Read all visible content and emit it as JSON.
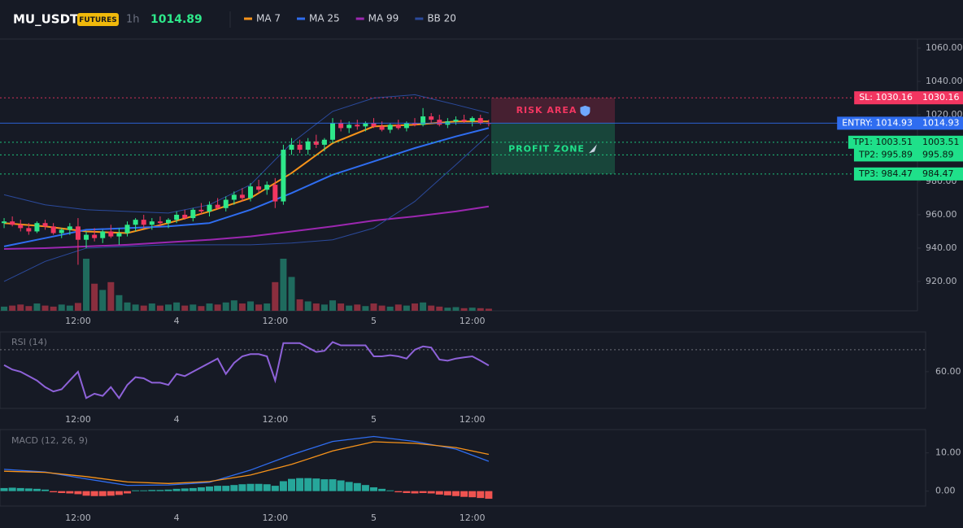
{
  "header": {
    "symbol": "MU_USDT",
    "badge": "FUTURES",
    "interval": "1h",
    "price": 1014.89
  },
  "chart_data": [
    {
      "type": "candlestick",
      "xlim": [
        -0.5,
        111.2
      ],
      "xticks": [
        {
          "value": 9,
          "label": "12:00"
        },
        {
          "value": 21,
          "label": "4"
        },
        {
          "value": 33,
          "label": "12:00"
        },
        {
          "value": 45,
          "label": "5"
        },
        {
          "value": 57,
          "label": "12:00"
        }
      ],
      "ylim": [
        902.4,
        1065.4
      ],
      "yticks": [
        {
          "value": 920,
          "label": "920.00"
        },
        {
          "value": 940,
          "label": "940.00"
        },
        {
          "value": 960,
          "label": "960.00"
        },
        {
          "value": 980,
          "label": "980.00"
        },
        {
          "value": 1000,
          "label": "1000.00"
        },
        {
          "value": 1020,
          "label": "1020.00"
        },
        {
          "value": 1040,
          "label": "1040.00"
        },
        {
          "value": 1060,
          "label": "1060.00"
        }
      ],
      "up_color": "#2ee88a",
      "down_color": "#f23661",
      "volume_up_color": "#1f6b5e",
      "volume_down_color": "#8a2e3e",
      "open": [
        955,
        956,
        954,
        952,
        950,
        955,
        953,
        949,
        951,
        953,
        945,
        948,
        946,
        950,
        947,
        949,
        954,
        957,
        954,
        956,
        955,
        957,
        960,
        958,
        963,
        962,
        966,
        964,
        969,
        972,
        970,
        977,
        975,
        978,
        968,
        999,
        1002,
        999,
        1004,
        1002,
        1005,
        1015,
        1012,
        1014,
        1013,
        1015,
        1013,
        1011,
        1014,
        1012,
        1015,
        1014,
        1019,
        1017,
        1014,
        1016,
        1017,
        1016,
        1018,
        1015
      ],
      "high": [
        958,
        959,
        957,
        955,
        956,
        957,
        955,
        952,
        955,
        958,
        950,
        952,
        951,
        954,
        952,
        956,
        958,
        960,
        958,
        959,
        958,
        962,
        963,
        964,
        967,
        968,
        970,
        971,
        974,
        976,
        979,
        981,
        980,
        982,
        1002,
        1006,
        1005,
        1006,
        1008,
        1006,
        1018,
        1017,
        1016,
        1017,
        1016,
        1018,
        1016,
        1015,
        1017,
        1016,
        1018,
        1024,
        1021,
        1020,
        1018,
        1019,
        1020,
        1019,
        1020,
        1017
      ],
      "low": [
        952,
        953,
        950,
        948,
        949,
        951,
        948,
        946,
        948,
        930,
        940,
        944,
        943,
        946,
        942,
        947,
        950,
        952,
        951,
        953,
        952,
        955,
        957,
        956,
        960,
        959,
        963,
        962,
        966,
        968,
        968,
        973,
        972,
        964,
        966,
        996,
        997,
        996,
        1000,
        998,
        1003,
        1010,
        1009,
        1011,
        1010,
        1012,
        1010,
        1009,
        1011,
        1010,
        1013,
        1013,
        1015,
        1013,
        1012,
        1014,
        1015,
        1013,
        1014,
        1013
      ],
      "close": [
        956,
        954,
        952,
        950,
        955,
        953,
        949,
        951,
        953,
        945,
        948,
        946,
        950,
        947,
        949,
        954,
        957,
        954,
        956,
        955,
        957,
        960,
        958,
        963,
        962,
        966,
        964,
        969,
        972,
        970,
        977,
        975,
        978,
        968,
        999,
        1002,
        999,
        1004,
        1002,
        1005,
        1015,
        1012,
        1014,
        1013,
        1015,
        1013,
        1011,
        1014,
        1012,
        1015,
        1014,
        1019,
        1017,
        1014,
        1016,
        1017,
        1016,
        1018,
        1015,
        1014.89
      ],
      "volume": [
        8,
        10,
        12,
        9,
        14,
        10,
        8,
        12,
        10,
        15,
        100,
        52,
        40,
        55,
        30,
        16,
        12,
        10,
        14,
        10,
        12,
        16,
        10,
        12,
        9,
        14,
        12,
        16,
        20,
        14,
        18,
        12,
        14,
        55,
        100,
        65,
        22,
        18,
        14,
        12,
        20,
        14,
        10,
        12,
        9,
        14,
        10,
        8,
        12,
        10,
        14,
        16,
        10,
        8,
        6,
        7,
        5,
        6,
        5,
        4
      ],
      "series": [
        {
          "name": "MA 7",
          "color": "#f7931a",
          "width": 2,
          "x": [
            0,
            5,
            10,
            15,
            20,
            25,
            30,
            35,
            40,
            45,
            50,
            55,
            59
          ],
          "values": [
            955,
            953,
            950,
            949,
            955,
            962,
            970,
            985,
            1003,
            1013,
            1014,
            1016,
            1016
          ]
        },
        {
          "name": "MA 25",
          "color": "#2f6df0",
          "width": 2,
          "x": [
            0,
            5,
            10,
            15,
            20,
            25,
            30,
            35,
            40,
            45,
            50,
            55,
            59
          ],
          "values": [
            941,
            946,
            951,
            952,
            953,
            955,
            963,
            973,
            984,
            992,
            1000,
            1007,
            1012
          ]
        },
        {
          "name": "MA 99",
          "color": "#9c27b0",
          "width": 2,
          "x": [
            0,
            5,
            10,
            15,
            20,
            25,
            30,
            35,
            40,
            45,
            50,
            55,
            59
          ],
          "values": [
            939.5,
            940,
            941,
            942,
            943.5,
            945,
            947,
            950,
            953,
            956.5,
            959,
            962,
            965
          ]
        },
        {
          "name": "BB 20",
          "color": "#2b4a9c",
          "width": 1,
          "x": [
            0,
            5,
            10,
            15,
            20,
            25,
            30,
            35,
            40,
            45,
            50,
            55,
            59
          ],
          "upper": [
            972,
            966,
            963,
            962,
            961,
            966,
            978,
            1003,
            1022,
            1030,
            1032,
            1026,
            1021
          ],
          "lower": [
            920,
            932,
            940,
            941,
            942,
            942,
            942,
            943,
            945,
            952,
            968,
            990,
            1008
          ]
        }
      ],
      "levels": [
        {
          "label": "SL: 1030.16",
          "value": 1030.16,
          "color": "#f23661",
          "style": "dotted"
        },
        {
          "label": "ENTRY: 1014.93",
          "value": 1014.93,
          "color": "#2f6df0",
          "style": "solid"
        },
        {
          "label": "TP1: 1003.51",
          "value": 1003.51,
          "color": "#1fe08a",
          "style": "dotted"
        },
        {
          "label": "TP2: 995.89",
          "value": 995.89,
          "color": "#1fe08a",
          "style": "dotted"
        },
        {
          "label": "TP3: 984.47",
          "value": 984.47,
          "color": "#1fe08a",
          "style": "dotted"
        }
      ],
      "zones": [
        "RISK AREA",
        "PROFIT ZONE"
      ]
    },
    {
      "type": "line",
      "title": "RSI (14)",
      "color": "#8e62d9",
      "ylim": [
        43.3,
        78.1
      ],
      "yticks": [
        {
          "value": 60,
          "label": "60.00"
        }
      ],
      "levels": [
        70
      ],
      "values": [
        63,
        61,
        60,
        58,
        56,
        53,
        51,
        52,
        56,
        60,
        48,
        50,
        49,
        53,
        48,
        54,
        57.5,
        57,
        55,
        55,
        54,
        59,
        58,
        60,
        62,
        64,
        66,
        59,
        64,
        67,
        68,
        68,
        67,
        56,
        73,
        73,
        73,
        71,
        69,
        69.5,
        73.5,
        72,
        72,
        72,
        72,
        67,
        67,
        67.5,
        67,
        66,
        70,
        71.5,
        71,
        65.5,
        65,
        66,
        66.5,
        67,
        65,
        62.8
      ]
    },
    {
      "type": "macd",
      "title": "MACD (12, 26, 9)",
      "ylim": [
        -3.9,
        16.1
      ],
      "yticks": [
        {
          "value": 10,
          "label": "10.00"
        },
        {
          "value": 0,
          "label": "0.00"
        }
      ],
      "histogram": {
        "up_color": "#26a69a",
        "down_color": "#ef5350",
        "values": [
          0.8,
          0.9,
          0.8,
          0.7,
          0.6,
          0.4,
          -0.3,
          -0.5,
          -0.6,
          -0.8,
          -1.2,
          -1.3,
          -1.3,
          -1.2,
          -1.0,
          -0.6,
          0.2,
          0.2,
          0.3,
          0.3,
          0.4,
          0.6,
          0.7,
          0.8,
          1.0,
          1.2,
          1.4,
          1.4,
          1.6,
          1.8,
          1.9,
          1.9,
          1.8,
          1.4,
          2.6,
          3.2,
          3.4,
          3.4,
          3.3,
          3.1,
          3.1,
          2.8,
          2.4,
          2.1,
          1.6,
          1.0,
          0.6,
          0.2,
          -0.3,
          -0.5,
          -0.6,
          -0.5,
          -0.6,
          -0.9,
          -1.1,
          -1.3,
          -1.5,
          -1.6,
          -1.8,
          -2.0
        ]
      },
      "series": [
        {
          "color": "#2f6df0",
          "x": [
            0,
            5,
            10,
            15,
            20,
            25,
            30,
            35,
            40,
            45,
            50,
            55,
            59
          ],
          "values": [
            5.7,
            5.0,
            3.2,
            1.5,
            1.6,
            2.3,
            5.5,
            9.5,
            13.0,
            14.3,
            13.0,
            11.0,
            7.8
          ]
        },
        {
          "color": "#f7931a",
          "x": [
            0,
            5,
            10,
            15,
            20,
            25,
            30,
            35,
            40,
            45,
            50,
            55,
            59
          ],
          "values": [
            5.2,
            4.9,
            3.8,
            2.4,
            2.0,
            2.5,
            4.2,
            7.0,
            10.5,
            12.9,
            12.5,
            11.4,
            9.6
          ]
        }
      ]
    }
  ]
}
